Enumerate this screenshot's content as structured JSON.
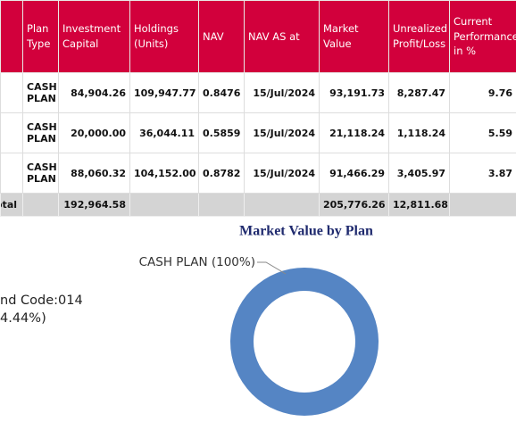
{
  "table": {
    "headers": [
      "Plan Type",
      "Investment Capital",
      "Holdings (Units)",
      "NAV",
      "NAV AS at",
      "Market Value",
      "Unrealized Profit/Loss",
      "Current Performance in %"
    ],
    "rows": [
      [
        "CASH PLAN",
        "84,904.26",
        "109,947.77",
        "0.8476",
        "15/Jul/2024",
        "93,191.73",
        "8,287.47",
        "9.76"
      ],
      [
        "CASH PLAN",
        "20,000.00",
        "36,044.11",
        "0.5859",
        "15/Jul/2024",
        "21,118.24",
        "1,118.24",
        "5.59"
      ],
      [
        "CASH PLAN",
        "88,060.32",
        "104,152.00",
        "0.8782",
        "15/Jul/2024",
        "91,466.29",
        "3,405.97",
        "3.87"
      ]
    ],
    "total": {
      "label": "otal",
      "investment_capital": "192,964.58",
      "market_value": "205,776.26",
      "unrealized": "12,811.68"
    }
  },
  "side_text": [
    "nd Code:014",
    "4.44%)"
  ],
  "chart": {
    "type": "pie",
    "title": "Market Value by Plan",
    "color": "#5585c4",
    "slices": [
      {
        "label": "CASH PLAN (100%)",
        "value": 100
      }
    ]
  }
}
